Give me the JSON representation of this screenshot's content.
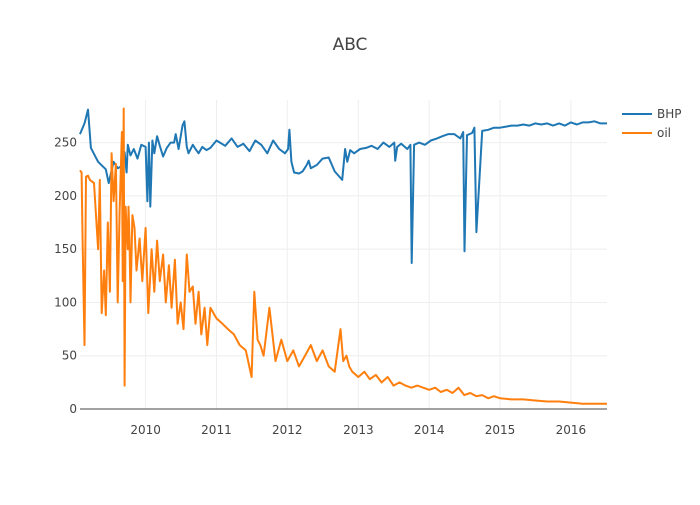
{
  "chart_data": {
    "type": "line",
    "title": "ABC",
    "xlabel": "",
    "ylabel": "",
    "x_range": [
      "2009-01-28",
      "2016-07-05"
    ],
    "ylim": [
      0,
      290
    ],
    "x_ticks": [
      "2010",
      "2011",
      "2012",
      "2013",
      "2014",
      "2015",
      "2016"
    ],
    "y_ticks": [
      0,
      50,
      100,
      150,
      200,
      250
    ],
    "grid": true,
    "legend_position": "top-right",
    "series": [
      {
        "name": "BHP",
        "color": "#1f77b4",
        "x": [
          "2009-01-28",
          "2009-02-20",
          "2009-03-10",
          "2009-03-25",
          "2009-05-01",
          "2009-06-10",
          "2009-06-25",
          "2009-07-20",
          "2009-08-10",
          "2009-09-01",
          "2009-09-15",
          "2009-09-25",
          "2009-10-01",
          "2009-10-15",
          "2009-11-01",
          "2009-11-20",
          "2009-12-10",
          "2010-01-01",
          "2010-01-10",
          "2010-01-18",
          "2010-01-25",
          "2010-02-05",
          "2010-02-15",
          "2010-03-01",
          "2010-03-15",
          "2010-04-01",
          "2010-04-20",
          "2010-05-10",
          "2010-05-28",
          "2010-06-05",
          "2010-06-20",
          "2010-07-10",
          "2010-07-20",
          "2010-08-01",
          "2010-08-10",
          "2010-09-01",
          "2010-09-15",
          "2010-10-01",
          "2010-10-20",
          "2010-11-10",
          "2010-12-01",
          "2011-01-01",
          "2011-02-15",
          "2011-03-20",
          "2011-04-20",
          "2011-05-20",
          "2011-06-20",
          "2011-07-20",
          "2011-08-20",
          "2011-09-20",
          "2011-10-20",
          "2011-11-20",
          "2011-12-20",
          "2012-01-05",
          "2012-01-12",
          "2012-01-22",
          "2012-02-05",
          "2012-03-01",
          "2012-03-20",
          "2012-04-10",
          "2012-04-20",
          "2012-05-01",
          "2012-06-01",
          "2012-07-01",
          "2012-08-01",
          "2012-09-01",
          "2012-10-10",
          "2012-10-25",
          "2012-11-05",
          "2012-11-20",
          "2012-12-10",
          "2013-01-10",
          "2013-02-10",
          "2013-03-10",
          "2013-04-10",
          "2013-05-10",
          "2013-06-10",
          "2013-07-05",
          "2013-07-10",
          "2013-07-20",
          "2013-08-10",
          "2013-09-10",
          "2013-09-26",
          "2013-10-03",
          "2013-10-15",
          "2013-11-10",
          "2013-12-10",
          "2014-01-10",
          "2014-02-10",
          "2014-03-10",
          "2014-04-10",
          "2014-05-10",
          "2014-06-10",
          "2014-06-25",
          "2014-07-02",
          "2014-07-15",
          "2014-08-10",
          "2014-08-22",
          "2014-09-01",
          "2014-10-01",
          "2014-11-01",
          "2014-12-01",
          "2015-01-01",
          "2015-02-01",
          "2015-03-01",
          "2015-04-01",
          "2015-05-01",
          "2015-06-01",
          "2015-07-01",
          "2015-08-01",
          "2015-09-01",
          "2015-10-01",
          "2015-11-01",
          "2015-12-01",
          "2016-01-01",
          "2016-02-01",
          "2016-03-01",
          "2016-04-01",
          "2016-05-01",
          "2016-06-01",
          "2016-07-05"
        ],
        "y": [
          258,
          268,
          281,
          245,
          232,
          225,
          212,
          232,
          226,
          228,
          241,
          222,
          248,
          238,
          244,
          235,
          248,
          246,
          195,
          250,
          190,
          252,
          240,
          256,
          247,
          237,
          245,
          250,
          250,
          258,
          244,
          266,
          270,
          246,
          240,
          248,
          244,
          240,
          246,
          243,
          245,
          252,
          247,
          254,
          246,
          249,
          242,
          252,
          248,
          240,
          252,
          244,
          240,
          244,
          262,
          232,
          222,
          221,
          223,
          229,
          233,
          226,
          229,
          235,
          236,
          223,
          215,
          244,
          232,
          243,
          240,
          244,
          245,
          247,
          244,
          250,
          246,
          250,
          233,
          246,
          249,
          244,
          248,
          137,
          248,
          250,
          248,
          252,
          254,
          256,
          258,
          258,
          254,
          260,
          148,
          257,
          259,
          264,
          166,
          261,
          262,
          264,
          264,
          265,
          266,
          266,
          267,
          266,
          268,
          267,
          268,
          266,
          268,
          266,
          269,
          267,
          269,
          269,
          270,
          268,
          268
        ],
        "label_positions": []
      },
      {
        "name": "oil",
        "color": "#ff7f0e",
        "x": [
          "2009-01-28",
          "2009-02-05",
          "2009-02-10",
          "2009-02-20",
          "2009-02-28",
          "2009-03-10",
          "2009-03-20",
          "2009-04-10",
          "2009-05-01",
          "2009-05-10",
          "2009-05-20",
          "2009-06-01",
          "2009-06-10",
          "2009-06-20",
          "2009-07-01",
          "2009-07-10",
          "2009-07-20",
          "2009-08-01",
          "2009-08-10",
          "2009-08-20",
          "2009-09-01",
          "2009-09-05",
          "2009-09-10",
          "2009-09-15",
          "2009-09-20",
          "2009-09-25",
          "2009-10-01",
          "2009-10-05",
          "2009-10-10",
          "2009-10-15",
          "2009-10-25",
          "2009-11-05",
          "2009-11-15",
          "2009-12-01",
          "2009-12-15",
          "2010-01-01",
          "2010-01-15",
          "2010-02-01",
          "2010-02-15",
          "2010-03-01",
          "2010-03-15",
          "2010-04-01",
          "2010-04-15",
          "2010-05-01",
          "2010-05-15",
          "2010-06-01",
          "2010-06-15",
          "2010-07-01",
          "2010-07-15",
          "2010-08-01",
          "2010-08-15",
          "2010-09-01",
          "2010-09-15",
          "2010-10-01",
          "2010-10-15",
          "2010-11-01",
          "2010-11-15",
          "2010-12-01",
          "2011-01-01",
          "2011-02-01",
          "2011-03-01",
          "2011-04-01",
          "2011-05-01",
          "2011-06-01",
          "2011-07-01",
          "2011-07-15",
          "2011-08-01",
          "2011-08-15",
          "2011-09-01",
          "2011-10-01",
          "2011-11-01",
          "2011-12-01",
          "2012-01-01",
          "2012-02-01",
          "2012-03-01",
          "2012-04-01",
          "2012-05-01",
          "2012-06-01",
          "2012-07-01",
          "2012-08-01",
          "2012-09-01",
          "2012-10-01",
          "2012-10-15",
          "2012-11-01",
          "2012-11-15",
          "2012-12-01",
          "2013-01-01",
          "2013-02-01",
          "2013-03-01",
          "2013-04-01",
          "2013-05-01",
          "2013-06-01",
          "2013-07-01",
          "2013-08-01",
          "2013-09-01",
          "2013-10-01",
          "2013-11-01",
          "2013-12-01",
          "2014-01-01",
          "2014-02-01",
          "2014-03-01",
          "2014-04-01",
          "2014-05-01",
          "2014-06-01",
          "2014-07-01",
          "2014-08-01",
          "2014-09-01",
          "2014-10-01",
          "2014-11-01",
          "2014-12-01",
          "2015-01-01",
          "2015-03-01",
          "2015-05-01",
          "2015-07-01",
          "2015-09-01",
          "2015-11-01",
          "2016-01-01",
          "2016-03-01",
          "2016-05-01",
          "2016-07-05"
        ],
        "y": [
          224,
          222,
          163,
          60,
          218,
          219,
          215,
          212,
          150,
          215,
          90,
          130,
          88,
          175,
          110,
          240,
          195,
          230,
          100,
          185,
          260,
          120,
          282,
          22,
          190,
          170,
          150,
          190,
          160,
          100,
          182,
          170,
          130,
          160,
          120,
          170,
          90,
          150,
          110,
          158,
          120,
          145,
          100,
          135,
          95,
          140,
          80,
          100,
          75,
          145,
          110,
          115,
          80,
          110,
          70,
          95,
          60,
          95,
          85,
          80,
          75,
          70,
          60,
          55,
          30,
          110,
          65,
          60,
          50,
          95,
          45,
          65,
          45,
          55,
          40,
          50,
          60,
          45,
          55,
          40,
          35,
          75,
          45,
          50,
          40,
          35,
          30,
          35,
          28,
          32,
          25,
          30,
          22,
          25,
          22,
          20,
          22,
          20,
          18,
          20,
          16,
          18,
          15,
          20,
          13,
          15,
          12,
          13,
          10,
          12,
          10,
          9,
          9,
          8,
          7,
          7,
          6,
          5,
          5,
          5
        ],
        "label_positions": []
      }
    ]
  }
}
